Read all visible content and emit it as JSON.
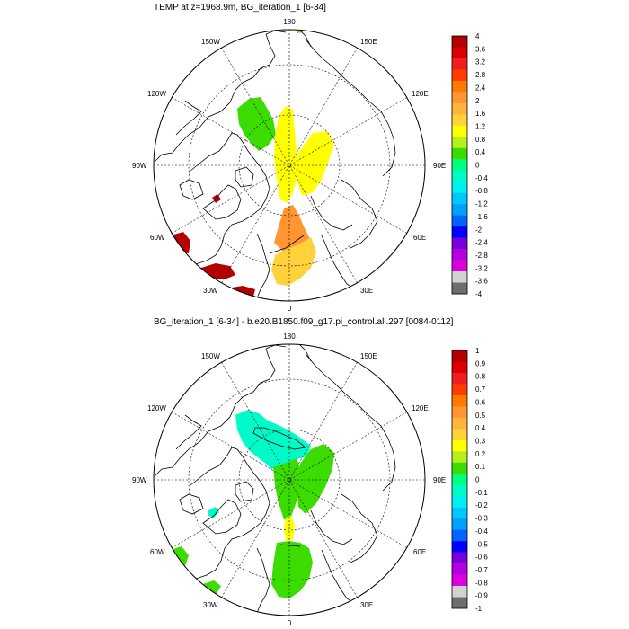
{
  "panels": [
    {
      "title": "TEMP at z=1968.9m, BG_iteration_1 [6-34]",
      "colorbar": {
        "labels": [
          "4",
          "3.6",
          "3.2",
          "2.8",
          "2.4",
          "2",
          "1.6",
          "1.2",
          "0.8",
          "0.4",
          "0",
          "-0.4",
          "-0.8",
          "-1.2",
          "-1.6",
          "-2",
          "-2.4",
          "-2.8",
          "-3.2",
          "-3.6",
          "-4"
        ],
        "colors": [
          "#b40000",
          "#dc0000",
          "#f01e1e",
          "#ff3c00",
          "#ff7800",
          "#ff9632",
          "#ffb43c",
          "#ffd23c",
          "#ffff00",
          "#b4f01e",
          "#3cdc00",
          "#00ff7f",
          "#00fac8",
          "#00f0f0",
          "#00c8ff",
          "#00a0ff",
          "#0064ff",
          "#0000ff",
          "#7800dc",
          "#b400dc",
          "#dc00dc",
          "#d2d2d2",
          "#6e6e6e"
        ]
      },
      "regions": [
        {
          "name": "region-green-lomonosov",
          "color": "#3cdc00"
        },
        {
          "name": "region-yellow-central",
          "color": "#ffff00"
        },
        {
          "name": "region-yellow-east",
          "color": "#ffff00"
        },
        {
          "name": "region-orange-fram",
          "color": "#ff9632"
        },
        {
          "name": "region-lightorange-nordic",
          "color": "#ffd23c"
        },
        {
          "name": "region-darkred-labrador",
          "color": "#b40000"
        },
        {
          "name": "region-darkred-irminger",
          "color": "#b40000"
        },
        {
          "name": "region-darkred-south",
          "color": "#b40000"
        },
        {
          "name": "region-darkred-baffin",
          "color": "#b40000"
        },
        {
          "name": "region-orange-bering",
          "color": "#ff9632"
        }
      ]
    },
    {
      "title": "BG_iteration_1 [6-34] - b.e20.B1850.f09_g17.pi_control.all.297 [0084-0112]",
      "colorbar": {
        "labels": [
          "1",
          "0.9",
          "0.8",
          "0.7",
          "0.6",
          "0.5",
          "0.4",
          "0.3",
          "0.2",
          "0.1",
          "0",
          "-0.1",
          "-0.2",
          "-0.3",
          "-0.4",
          "-0.5",
          "-0.6",
          "-0.7",
          "-0.8",
          "-0.9",
          "-1"
        ],
        "colors": [
          "#b40000",
          "#dc0000",
          "#f01e1e",
          "#ff3c00",
          "#ff7800",
          "#ff9632",
          "#ffb43c",
          "#ffd23c",
          "#ffff00",
          "#b4f01e",
          "#3cdc00",
          "#00ff7f",
          "#00fac8",
          "#00f0f0",
          "#00c8ff",
          "#00a0ff",
          "#0064ff",
          "#0000ff",
          "#7800dc",
          "#b400dc",
          "#dc00dc",
          "#d2d2d2",
          "#6e6e6e"
        ]
      },
      "regions": [
        {
          "name": "region-cyan-canada",
          "color": "#00fac8"
        },
        {
          "name": "region-green-central",
          "color": "#3cdc00"
        },
        {
          "name": "region-green-east",
          "color": "#3cdc00"
        },
        {
          "name": "region-green-nordic",
          "color": "#3cdc00"
        },
        {
          "name": "region-yellow-fram",
          "color": "#ffff00"
        },
        {
          "name": "region-green-labrador",
          "color": "#3cdc00"
        },
        {
          "name": "region-green-south",
          "color": "#3cdc00"
        },
        {
          "name": "region-cyan-baffin",
          "color": "#00fac8"
        }
      ]
    }
  ],
  "map_labels": {
    "top": "180",
    "bottom": "0",
    "left": "90W",
    "right": "90E",
    "lon150w": "150W",
    "lon150e": "150E",
    "lon120w": "120W",
    "lon120e": "120E",
    "lon60w": "60W",
    "lon60e": "60E",
    "lon30w": "30W",
    "lon30e": "30E"
  }
}
